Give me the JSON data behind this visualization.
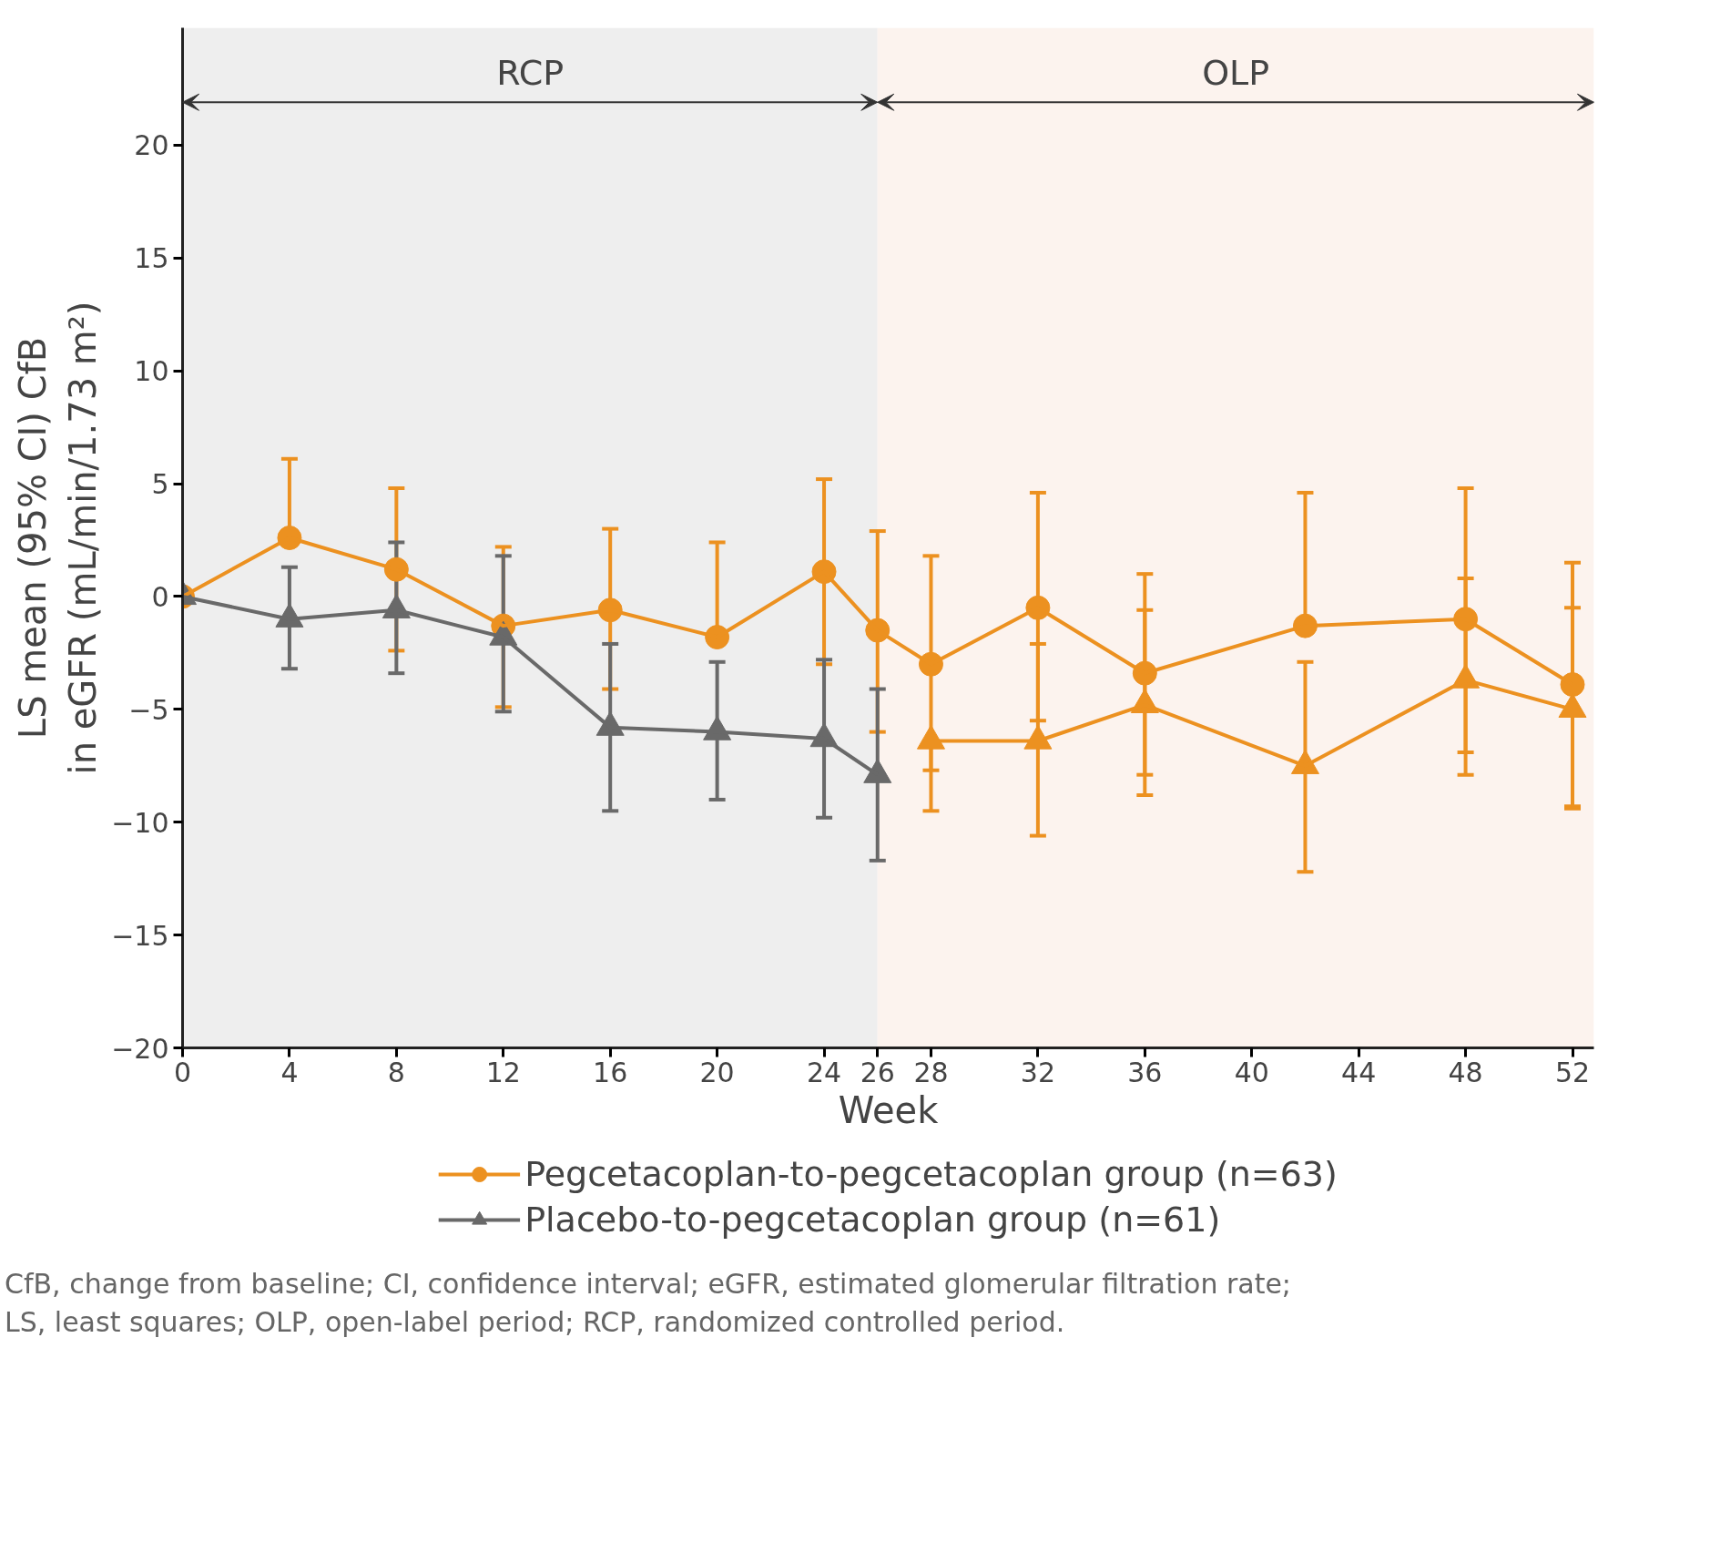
{
  "chart_data": {
    "type": "line",
    "xlabel": "Week",
    "ylabel": "LS mean (95% CI) CfB\nin eGFR (mL/min/1.73 m²)",
    "x": [
      0,
      4,
      8,
      12,
      16,
      20,
      24,
      26,
      28,
      32,
      36,
      42,
      48,
      52
    ],
    "xlim": [
      0,
      52.8
    ],
    "ylim": [
      -20,
      25.2
    ],
    "xticks": [
      0,
      4,
      8,
      12,
      16,
      20,
      24,
      26,
      28,
      32,
      36,
      40,
      44,
      48,
      52
    ],
    "yticks": [
      -20,
      -15,
      -10,
      -5,
      0,
      5,
      10,
      15,
      20
    ],
    "series": [
      {
        "name": "Pegcetacoplan-to-pegcetacoplan group (n=63)",
        "color": "#ec9120",
        "marker": "circle",
        "values": [
          0,
          2.6,
          1.2,
          -1.3,
          -0.6,
          -1.8,
          1.1,
          -1.5,
          -3.0,
          -0.5,
          -3.4,
          -1.3,
          -1.0,
          -3.9
        ],
        "errors": [
          null,
          [
            2.6,
            6.1
          ],
          [
            -2.4,
            4.8
          ],
          [
            -4.9,
            2.2
          ],
          [
            -4.1,
            3.0
          ],
          [
            -1.8,
            2.4
          ],
          [
            -3.0,
            5.2
          ],
          [
            -6.0,
            2.9
          ],
          [
            -7.7,
            1.8
          ],
          [
            -5.5,
            4.6
          ],
          [
            -7.9,
            1.0
          ],
          [
            -1.3,
            4.6
          ],
          [
            -6.9,
            4.8
          ],
          [
            -9.3,
            1.5
          ]
        ]
      },
      {
        "name": "Placebo-to-pegcetacoplan group (n=61)",
        "color": "#696969",
        "marker": "triangle",
        "x": [
          0,
          4,
          8,
          12,
          16,
          20,
          24,
          26
        ],
        "values": [
          0,
          -1.0,
          -0.6,
          -1.8,
          -5.8,
          -6.0,
          -6.3,
          -7.9
        ],
        "errors": [
          null,
          [
            -3.2,
            1.3
          ],
          [
            -3.4,
            2.4
          ],
          [
            -5.1,
            1.8
          ],
          [
            -9.5,
            -2.1
          ],
          [
            -9.0,
            -2.9
          ],
          [
            -9.8,
            -2.8
          ],
          [
            -11.7,
            -4.1
          ]
        ]
      },
      {
        "color": "#ec9120",
        "marker": "triangle",
        "x": [
          28,
          32,
          36,
          42,
          48,
          52
        ],
        "values": [
          -6.4,
          -6.4,
          -4.8,
          -7.5,
          -3.7,
          -5.0
        ],
        "errors": [
          [
            -9.5,
            -6.4
          ],
          [
            -10.6,
            -2.1
          ],
          [
            -8.8,
            -0.6
          ],
          [
            -12.2,
            -2.9
          ],
          [
            -7.9,
            0.8
          ],
          [
            -9.4,
            -0.5
          ]
        ]
      }
    ],
    "bands": [
      {
        "axis": "x",
        "from": 0,
        "to": 26,
        "label": "RCP",
        "color": "#eeeeee"
      },
      {
        "axis": "x",
        "from": 26,
        "to": 52.8,
        "label": "OLP",
        "color": "#fcf3ee"
      }
    ],
    "legend": "bottom",
    "annotations": [
      "CfB, change from baseline; CI, confidence interval; eGFR, estimated glomerular filtration rate;\nLS, least squares; OLP, open-label period; RCP, randomized controlled period."
    ]
  }
}
